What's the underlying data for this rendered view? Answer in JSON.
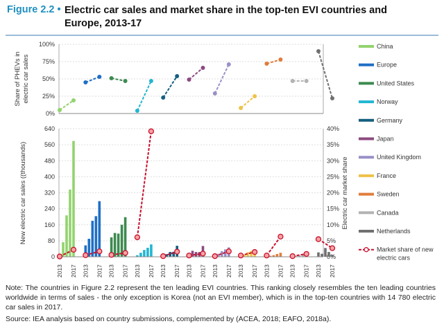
{
  "title": {
    "figure": "Figure 2.2 •",
    "text": "Electric car sales and market share in the top-ten EVI countries and Europe, 2013-17"
  },
  "note": "Note: The countries in Figure 2.2 represent the ten leading EVI countries. This ranking closely resembles the ten leading countries worldwide in terms of sales - the only exception is Korea (not an EVI member), which is in the top-ten countries with 14 780 electric car sales in 2017.",
  "source": "Source: IEA analysis based on country submissions, complemented by (ACEA, 2018; EAFO, 2018a).",
  "chart_data": [
    {
      "type": "line",
      "ylabel": "Share of PHEVs in electric car sales",
      "ylim": [
        0,
        100
      ],
      "yticks": [
        "0%",
        "25%",
        "50%",
        "75%",
        "100%"
      ],
      "grid": true,
      "years": [
        2013,
        2017
      ],
      "series": [
        {
          "name": "China",
          "values": [
            5,
            19
          ]
        },
        {
          "name": "Europe",
          "values": [
            45,
            53
          ]
        },
        {
          "name": "United States",
          "values": [
            51,
            47
          ]
        },
        {
          "name": "Norway",
          "values": [
            4,
            47
          ]
        },
        {
          "name": "Germany",
          "values": [
            23,
            54
          ]
        },
        {
          "name": "Japan",
          "values": [
            49,
            66
          ]
        },
        {
          "name": "United Kingdom",
          "values": [
            29,
            71
          ]
        },
        {
          "name": "France",
          "values": [
            8,
            25
          ]
        },
        {
          "name": "Sweden",
          "values": [
            72,
            78
          ]
        },
        {
          "name": "Canada",
          "values": [
            47,
            47
          ]
        },
        {
          "name": "Netherlands",
          "values": [
            90,
            22
          ]
        }
      ]
    },
    {
      "type": "bar",
      "ylabel": "New electric car sales ((thousands)",
      "ylim": [
        0,
        640
      ],
      "yticks": [
        "0",
        "80",
        "160",
        "240",
        "320",
        "400",
        "480",
        "560",
        "640"
      ],
      "y2label": "Electric car market share",
      "y2lim": [
        0,
        40
      ],
      "y2ticks": [
        "0%",
        "5%",
        "10%",
        "15%",
        "20%",
        "25%",
        "30%",
        "35%",
        "40%"
      ],
      "grid": true,
      "legend": "right",
      "xticks": [
        "2013",
        "2017"
      ],
      "years": [
        2013,
        2014,
        2015,
        2016,
        2017
      ],
      "series": [
        {
          "name": "China",
          "color": "#92d36e",
          "values": [
            15,
            73,
            207,
            336,
            579
          ],
          "market_share": [
            0.1,
            2.2
          ]
        },
        {
          "name": "Europe",
          "color": "#1f6fc5",
          "values": [
            57,
            90,
            180,
            203,
            278
          ],
          "market_share": [
            0.5,
            1.7
          ]
        },
        {
          "name": "United States",
          "color": "#3d8a50",
          "values": [
            97,
            119,
            116,
            160,
            198
          ],
          "market_share": [
            0.6,
            1.2
          ]
        },
        {
          "name": "Norway",
          "color": "#22b6d2",
          "values": [
            8,
            20,
            34,
            45,
            62
          ],
          "market_share": [
            6.1,
            39.2
          ]
        },
        {
          "name": "Germany",
          "color": "#155f80",
          "values": [
            6,
            13,
            24,
            25,
            55
          ],
          "market_share": [
            0.2,
            1.6
          ]
        },
        {
          "name": "Japan",
          "color": "#8c4a7f",
          "values": [
            15,
            30,
            24,
            24,
            54
          ],
          "market_share": [
            0.4,
            1.0
          ]
        },
        {
          "name": "United Kingdom",
          "color": "#9a90c8",
          "values": [
            4,
            15,
            28,
            37,
            47
          ],
          "market_share": [
            0.2,
            1.7
          ]
        },
        {
          "name": "France",
          "color": "#eec24a",
          "values": [
            9,
            12,
            23,
            29,
            34
          ],
          "market_share": [
            0.4,
            1.5
          ]
        },
        {
          "name": "Sweden",
          "color": "#e07d3c",
          "values": [
            2,
            5,
            8,
            14,
            20
          ],
          "market_share": [
            0.4,
            6.3
          ]
        },
        {
          "name": "Canada",
          "color": "#b3b3b3",
          "values": [
            3,
            5,
            7,
            12,
            16
          ],
          "market_share": [
            0.2,
            0.9
          ]
        },
        {
          "name": "Netherlands",
          "color": "#707070",
          "values": [
            22,
            15,
            44,
            24,
            10
          ],
          "market_share": [
            5.5,
            2.7
          ]
        }
      ],
      "market_share_legend": "Market share of new electric cars",
      "market_share_color": "#c8102e"
    }
  ]
}
